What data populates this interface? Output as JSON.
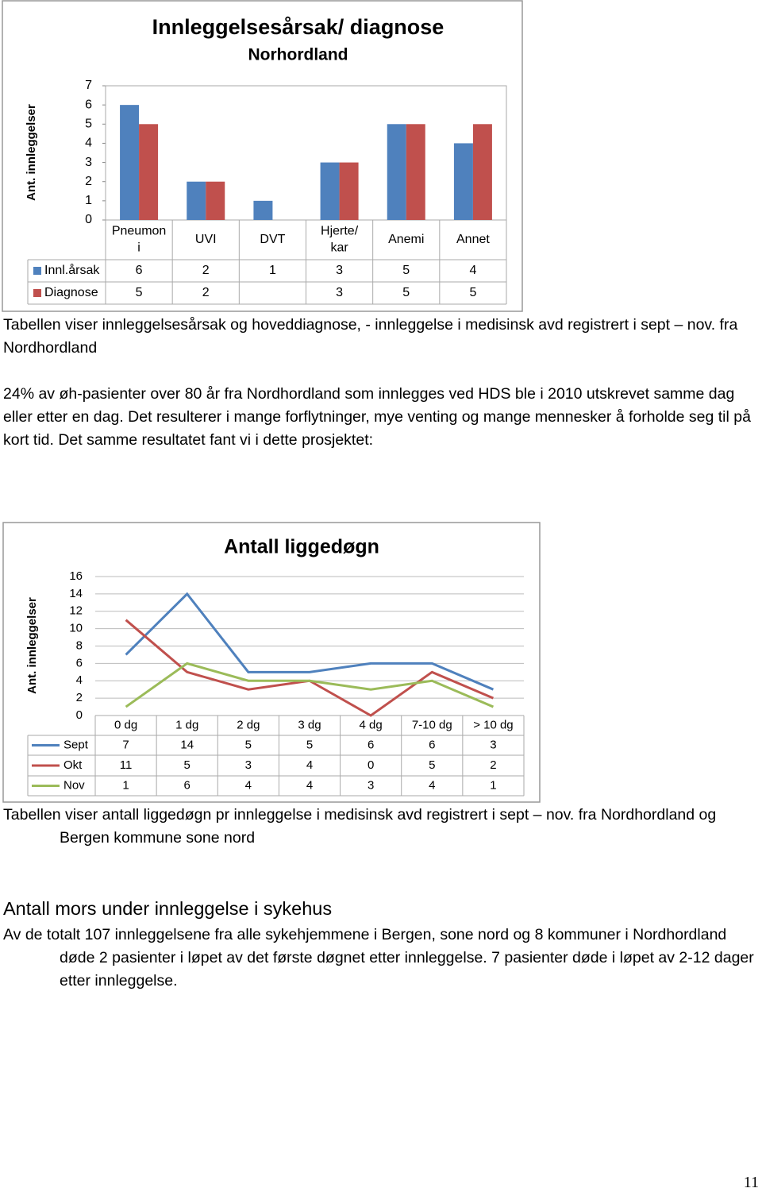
{
  "chart_data": [
    {
      "type": "bar",
      "title": "Innleggelsesårsak/ diagnose",
      "subtitle": "Norhordland",
      "y_label": "Ant. innleggelser",
      "categories": [
        "Pneumon\ni",
        "UVI",
        "DVT",
        "Hjerte/\nkar",
        "Anemi",
        "Annet"
      ],
      "series": [
        {
          "name": "Innl.årsak",
          "color": "#4f81bd",
          "values": [
            6,
            2,
            1,
            3,
            5,
            4
          ]
        },
        {
          "name": "Diagnose",
          "color": "#c0504d",
          "values": [
            5,
            2,
            null,
            3,
            5,
            5
          ]
        }
      ],
      "ylim": [
        0,
        7
      ],
      "yticks": [
        0,
        1,
        2,
        3,
        4,
        5,
        6,
        7
      ],
      "grid": false
    },
    {
      "type": "line",
      "title": "Antall liggedøgn",
      "y_label": "Ant. innleggelser",
      "categories": [
        "0 dg",
        "1 dg",
        "2 dg",
        "3 dg",
        "4 dg",
        "7-10 dg",
        "> 10 dg"
      ],
      "series": [
        {
          "name": "Sept",
          "color": "#4f81bd",
          "values": [
            7,
            14,
            5,
            5,
            6,
            6,
            3
          ]
        },
        {
          "name": "Okt",
          "color": "#c0504d",
          "values": [
            11,
            5,
            3,
            4,
            0,
            5,
            2
          ]
        },
        {
          "name": "Nov",
          "color": "#9bbb59",
          "values": [
            1,
            6,
            4,
            4,
            3,
            4,
            1
          ]
        }
      ],
      "ylim": [
        0,
        16
      ],
      "yticks": [
        0,
        2,
        4,
        6,
        8,
        10,
        12,
        14,
        16
      ],
      "grid": true
    }
  ],
  "paragraphs": [
    "Tabellen viser innleggelsesårsak og hoveddiagnose, - innleggelse i medisinsk avd registrert i sept – nov. fra Nordhordland",
    "24% av øh-pasienter over 80 år fra Nordhordland som innlegges ved HDS ble i 2010  utskrevet samme dag eller etter en dag. Det resulterer i mange forflytninger, mye venting og mange mennesker å forholde seg til på kort tid. Det samme resultatet fant vi i dette prosjektet:",
    "Tabellen viser antall liggedøgn pr innleggelse i medisinsk avd registrert i sept – nov. fra Nordhordland og Bergen kommune sone nord"
  ],
  "heading": "Antall mors under innleggelse i sykehus",
  "body": "Av de totalt 107 innleggelsene fra alle sykehjemmene i Bergen, sone nord og 8 kommuner i Nordhordland døde 2 pasienter i løpet av det første døgnet etter innleggelse. 7 pasienter døde i løpet av 2-12 dager etter innleggelse.",
  "page_number": "11"
}
